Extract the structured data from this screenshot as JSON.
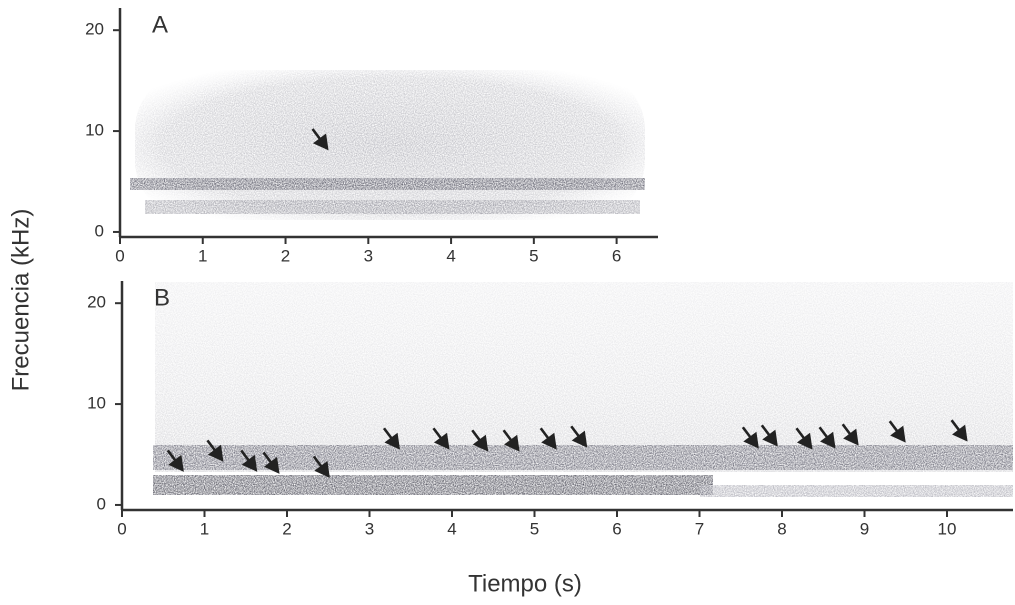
{
  "chart_data": [
    {
      "type": "spectrogram",
      "label": "A",
      "y_label": "Frecuencia (kHz)",
      "xlim": [
        0,
        6.5
      ],
      "ylim": [
        -0.5,
        22.2
      ],
      "xticks": [
        0,
        1,
        2,
        3,
        4,
        5,
        6
      ],
      "yticks": [
        0,
        10,
        20
      ],
      "arrows": {
        "x": [
          2.5
        ],
        "y": [
          8.3
        ]
      },
      "color": "#333333"
    },
    {
      "type": "spectrogram",
      "label": "B",
      "x_label": "Tiempo (s)",
      "xlim": [
        0,
        10.8
      ],
      "ylim": [
        -0.5,
        22.2
      ],
      "xticks": [
        0,
        1,
        2,
        3,
        4,
        5,
        6,
        7,
        8,
        9,
        10
      ],
      "yticks": [
        0,
        10,
        20
      ],
      "arrows": {
        "x": [
          0.73,
          1.21,
          1.62,
          1.89,
          2.5,
          3.35,
          3.95,
          4.42,
          4.8,
          5.25,
          5.62,
          7.7,
          7.93,
          8.35,
          8.63,
          8.91,
          9.48,
          10.23
        ],
        "y": [
          3.5,
          4.5,
          3.5,
          3.3,
          2.9,
          5.7,
          5.7,
          5.5,
          5.5,
          5.7,
          5.9,
          5.8,
          6.0,
          5.7,
          5.8,
          6.1,
          6.4,
          6.5
        ]
      },
      "color": "#333333"
    }
  ]
}
